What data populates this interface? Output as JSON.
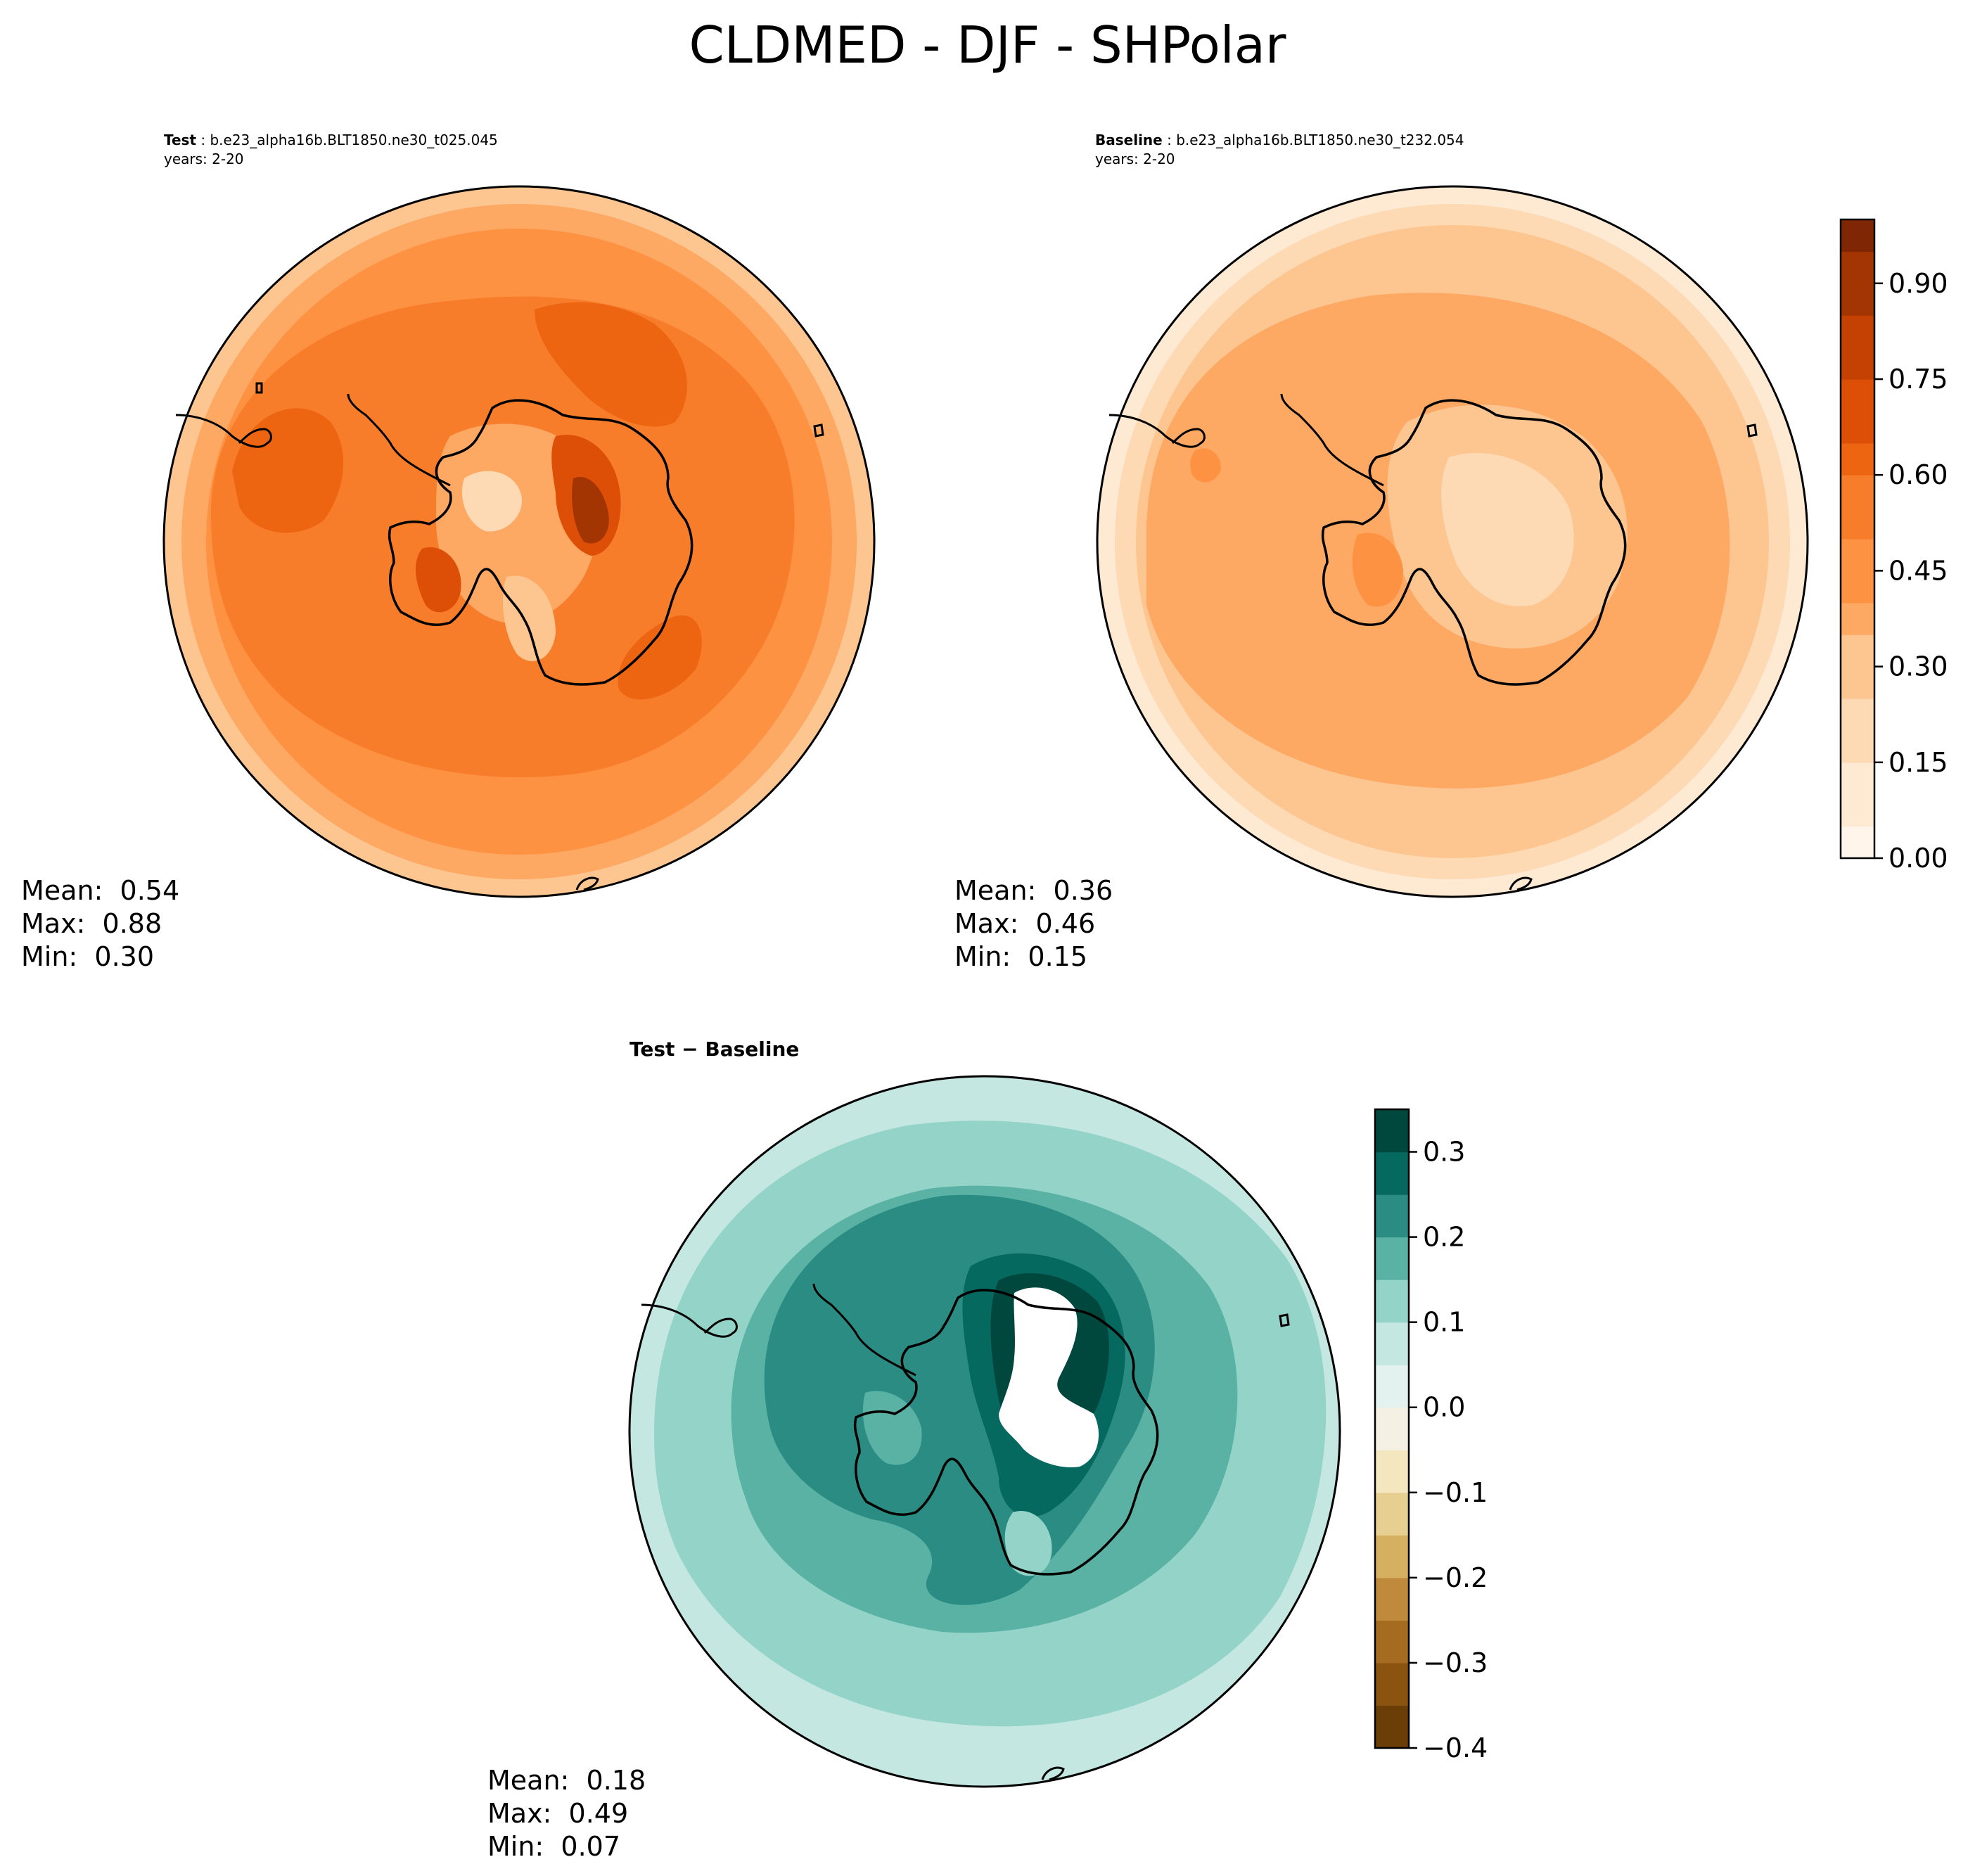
{
  "title": "CLDMED - DJF - SHPolar",
  "test_panel": {
    "case_label": "Test",
    "case_name": "b.e23_alpha16b.BLT1850.ne30_t025.045",
    "years": "years: 2-20",
    "mean_label": "Mean:",
    "mean": "0.54",
    "max_label": "Max:",
    "max": "0.88",
    "min_label": "Min:",
    "min": "0.30"
  },
  "baseline_panel": {
    "case_label": "Baseline",
    "case_name": "b.e23_alpha16b.BLT1850.ne30_t232.054",
    "years": "years: 2-20",
    "mean_label": "Mean:",
    "mean": "0.36",
    "max_label": "Max:",
    "max": "0.46",
    "min_label": "Min:",
    "min": "0.15"
  },
  "diff_panel": {
    "label_left": "Test",
    "label_sep": " − ",
    "label_right": "Baseline",
    "mean_label": "Mean:",
    "mean": "0.18",
    "max_label": "Max:",
    "max": "0.49",
    "min_label": "Min:",
    "min": "0.07"
  },
  "chart_data": [
    {
      "type": "heatmap",
      "name": "Test",
      "projection": "south polar stereographic",
      "colormap": "Oranges",
      "value_range": [
        0.0,
        1.0
      ],
      "levels": [
        0.0,
        0.05,
        0.1,
        0.15,
        0.2,
        0.25,
        0.3,
        0.35,
        0.4,
        0.45,
        0.5,
        0.55,
        0.6,
        0.65,
        0.7,
        0.75,
        0.8,
        0.85,
        0.9,
        0.95,
        1.0
      ],
      "colorbar_ticks": [
        "0.00",
        "0.15",
        "0.30",
        "0.45",
        "0.60",
        "0.75",
        "0.90"
      ],
      "tick_values": [
        0.0,
        0.15,
        0.3,
        0.45,
        0.6,
        0.75,
        0.9
      ],
      "stats": {
        "mean": 0.54,
        "max": 0.88,
        "min": 0.3
      }
    },
    {
      "type": "heatmap",
      "name": "Baseline",
      "projection": "south polar stereographic",
      "colormap": "Oranges",
      "value_range": [
        0.0,
        1.0
      ],
      "stats": {
        "mean": 0.36,
        "max": 0.46,
        "min": 0.15
      }
    },
    {
      "type": "heatmap",
      "name": "Test − Baseline",
      "projection": "south polar stereographic",
      "colormap": "BrBG",
      "value_range": [
        -0.4,
        0.35
      ],
      "levels": [
        -0.4,
        -0.35,
        -0.3,
        -0.25,
        -0.2,
        -0.15,
        -0.1,
        -0.05,
        0.0,
        0.05,
        0.1,
        0.15,
        0.2,
        0.25,
        0.3,
        0.35
      ],
      "colorbar_ticks": [
        "0.3",
        "0.2",
        "0.1",
        "0.0",
        "−0.1",
        "−0.2",
        "−0.3",
        "−0.4"
      ],
      "tick_values": [
        0.3,
        0.2,
        0.1,
        0.0,
        -0.1,
        -0.2,
        -0.3,
        -0.4
      ],
      "stats": {
        "mean": 0.18,
        "max": 0.49,
        "min": 0.07
      }
    }
  ],
  "colors": {
    "oranges": [
      "#fff5eb",
      "#fee9d3",
      "#fdd9b4",
      "#fdc590",
      "#fda863",
      "#fd9243",
      "#f87d2b",
      "#ee6511",
      "#dd4f06",
      "#c44103",
      "#a33503",
      "#7f2704"
    ],
    "brbg_neg": [
      "#6b3d07",
      "#8a5410",
      "#a56c21",
      "#c08a3c",
      "#d6b061",
      "#e7cf92",
      "#f4e6bf",
      "#f5f0e4"
    ],
    "brbg_pos": [
      "#e4f2ef",
      "#c4e7e2",
      "#93d3c8",
      "#5ab2a5",
      "#2a8c82",
      "#06695f",
      "#00473e"
    ]
  }
}
